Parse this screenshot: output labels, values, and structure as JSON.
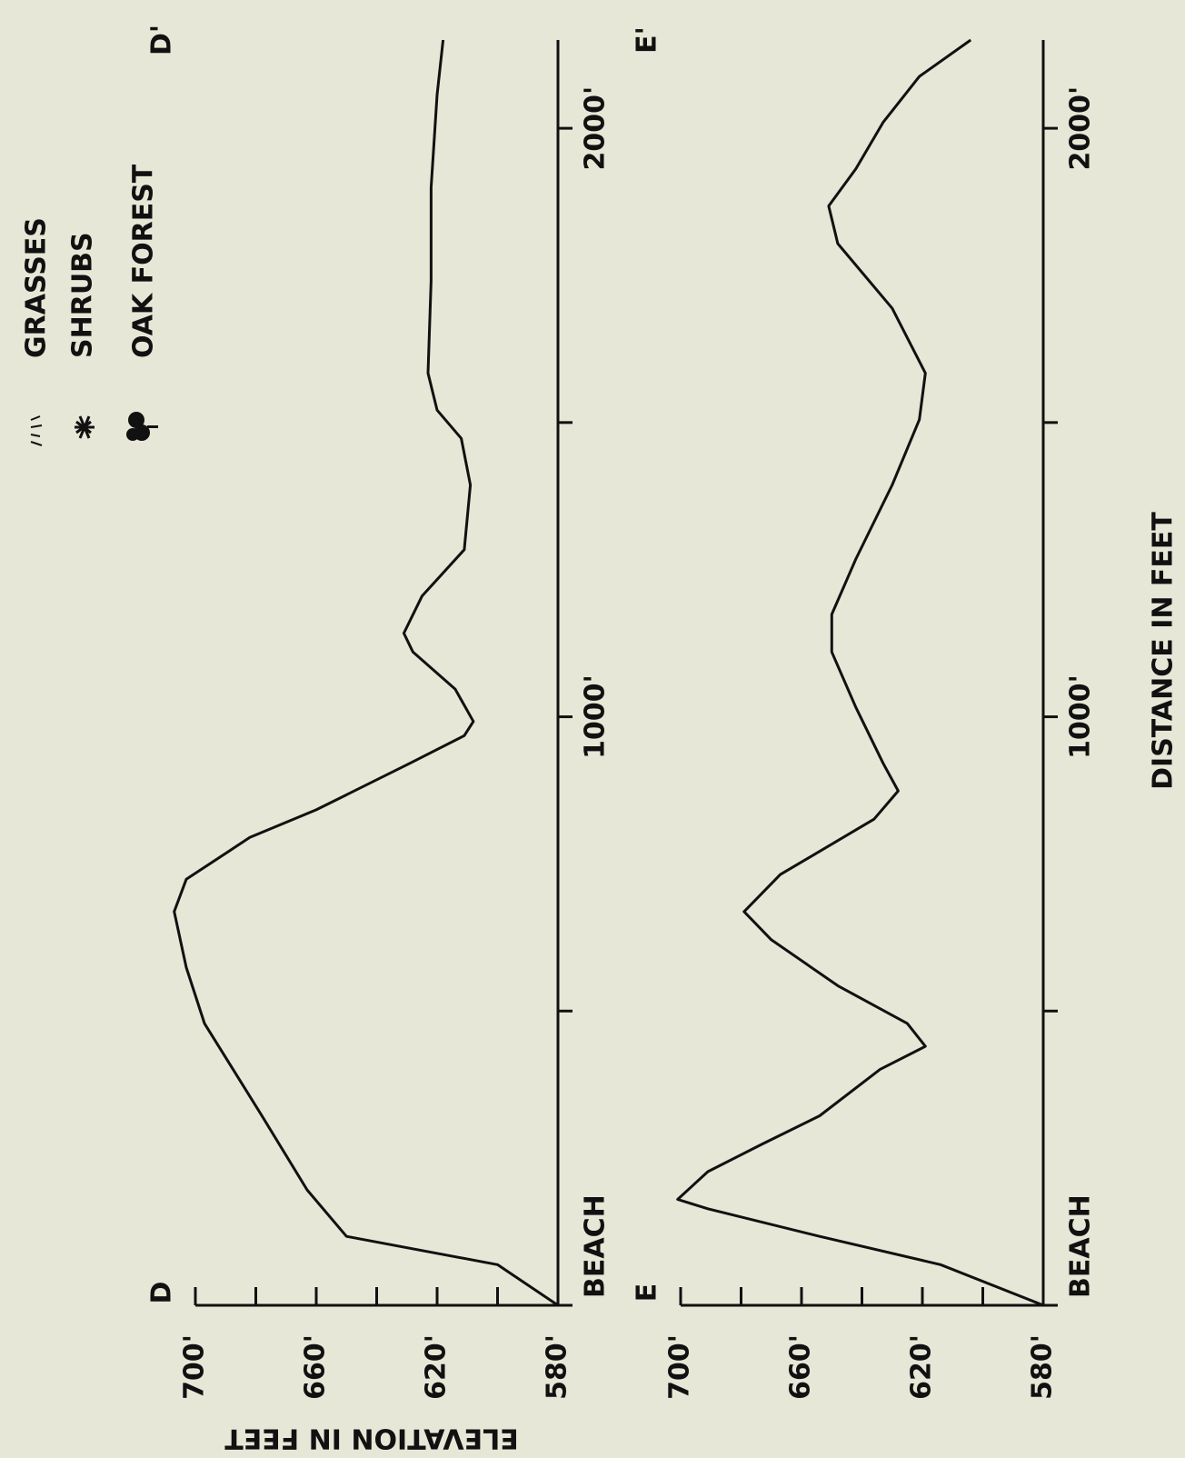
{
  "legend": [
    "GRASSES",
    "SHRUBS",
    "OAK FOREST"
  ],
  "x_axis_title": "DISTANCE IN FEET",
  "y_axis_title": "ELEVATION IN FEET",
  "chart_data": [
    {
      "type": "line",
      "start_label": "D",
      "end_label": "D'",
      "x": [
        0,
        69,
        117,
        196,
        322,
        479,
        574,
        669,
        724,
        795,
        842,
        921,
        968,
        992,
        1047,
        1110,
        1142,
        1205,
        1284,
        1394,
        1473,
        1521,
        1584,
        1741,
        1899,
        2057,
        2150
      ],
      "series": [
        {
          "color": "#111111",
          "values": [
            580,
            600,
            650,
            663,
            678,
            697,
            703,
            707,
            703,
            682,
            660,
            629,
            611,
            608,
            614,
            628,
            631,
            625,
            611,
            609,
            612,
            620,
            623,
            622,
            622,
            620,
            618
          ]
        }
      ],
      "xlim": [
        0,
        2150
      ],
      "xticks": [
        {
          "value": 0,
          "label": "BEACH"
        },
        {
          "value": 1000,
          "label": "1000'"
        },
        {
          "value": 2000,
          "label": "2000'"
        }
      ],
      "xminorticks": [
        500,
        1500
      ],
      "ylim": [
        580,
        700
      ],
      "yticks": [
        {
          "value": 580,
          "label": "580'"
        },
        {
          "value": 620,
          "label": "620'"
        },
        {
          "value": 660,
          "label": "660'"
        },
        {
          "value": 700,
          "label": "700'"
        }
      ],
      "yminorticks": [
        600,
        640,
        680
      ]
    },
    {
      "type": "line",
      "start_label": "E",
      "end_label": "E'",
      "x": [
        0,
        69,
        117,
        164,
        180,
        227,
        274,
        322,
        401,
        440,
        479,
        543,
        621,
        669,
        732,
        826,
        874,
        921,
        1016,
        1110,
        1174,
        1268,
        1394,
        1505,
        1584,
        1694,
        1804,
        1868,
        1931,
        2010,
        2088,
        2150
      ],
      "series": [
        {
          "color": "#111111",
          "values": [
            580,
            614,
            654,
            691,
            701,
            691,
            673,
            654,
            634,
            619,
            625,
            648,
            670,
            679,
            667,
            636,
            628,
            633,
            642,
            650,
            650,
            642,
            630,
            621,
            619,
            630,
            648,
            651,
            642,
            633,
            621,
            604
          ]
        }
      ],
      "xlim": [
        0,
        2150
      ],
      "xticks": [
        {
          "value": 0,
          "label": "BEACH"
        },
        {
          "value": 1000,
          "label": "1000'"
        },
        {
          "value": 2000,
          "label": "2000'"
        }
      ],
      "xminorticks": [
        500,
        1500
      ],
      "ylim": [
        580,
        700
      ],
      "yticks": [
        {
          "value": 580,
          "label": "580'"
        },
        {
          "value": 620,
          "label": "620'"
        },
        {
          "value": 660,
          "label": "660'"
        },
        {
          "value": 700,
          "label": "700'"
        }
      ],
      "yminorticks": [
        600,
        640,
        680
      ]
    }
  ]
}
